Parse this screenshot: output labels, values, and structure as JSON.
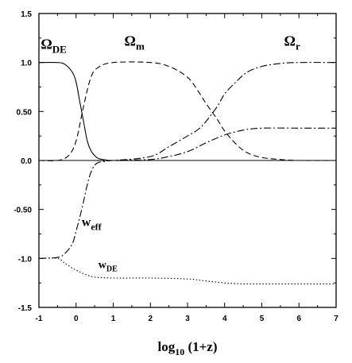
{
  "chart_data": {
    "type": "line",
    "xlabel": "log",
    "xlabel_sub": "10",
    "xlabel_tail": " (1+z)",
    "xlim": [
      -1,
      7
    ],
    "ylim": [
      -1.5,
      1.5
    ],
    "x_ticks": [
      -1,
      0,
      1,
      2,
      3,
      4,
      5,
      6,
      7
    ],
    "x_tick_labels": [
      "-1",
      "0",
      "1",
      "2",
      "3",
      "4",
      "5",
      "6",
      "7"
    ],
    "y_ticks": [
      -1.5,
      -1.0,
      -0.5,
      0.0,
      0.5,
      1.0,
      1.5
    ],
    "y_tick_labels": [
      "-1.5",
      "-1.0",
      "-0.50",
      "0.0",
      "0.50",
      "1.0",
      "1.5"
    ],
    "reference_line_y": 0,
    "grid": false,
    "series": [
      {
        "name": "Ω_DE",
        "label_main": "Ω",
        "label_sub": "DE",
        "style": "solid",
        "x": [
          -1,
          -0.5,
          -0.3,
          -0.1,
          0.0,
          0.1,
          0.2,
          0.3,
          0.4,
          0.5,
          0.6,
          0.8,
          1.0,
          2.0,
          7.0
        ],
        "y": [
          1.0,
          1.0,
          0.98,
          0.9,
          0.8,
          0.6,
          0.4,
          0.2,
          0.1,
          0.05,
          0.02,
          0.005,
          0.0,
          0.0,
          0.0
        ]
      },
      {
        "name": "Ω_m",
        "label_main": "Ω",
        "label_sub": "m",
        "style": "dashed",
        "x": [
          -1,
          -0.5,
          -0.2,
          0.0,
          0.2,
          0.4,
          0.6,
          1.0,
          2.0,
          2.5,
          3.0,
          3.3,
          3.5,
          3.8,
          4.0,
          4.3,
          4.6,
          5.0,
          5.5,
          6.0,
          7.0
        ],
        "y": [
          0.0,
          0.0,
          0.05,
          0.2,
          0.55,
          0.85,
          0.95,
          1.0,
          1.0,
          0.96,
          0.85,
          0.7,
          0.58,
          0.42,
          0.3,
          0.17,
          0.08,
          0.03,
          0.01,
          0.0,
          0.0
        ]
      },
      {
        "name": "Ω_r",
        "label_main": "Ω",
        "label_sub": "r",
        "style": "dashdot",
        "x": [
          -1,
          0.5,
          1.0,
          2.0,
          2.5,
          3.0,
          3.3,
          3.5,
          3.8,
          4.0,
          4.3,
          4.6,
          5.0,
          5.5,
          6.0,
          7.0
        ],
        "y": [
          0.0,
          0.0,
          0.0,
          0.04,
          0.14,
          0.25,
          0.32,
          0.4,
          0.55,
          0.68,
          0.8,
          0.9,
          0.96,
          0.99,
          1.0,
          1.0
        ]
      },
      {
        "name": "w_eff",
        "label_main": "w",
        "label_sub": "eff",
        "style": "dashdot",
        "x": [
          -1,
          -0.5,
          -0.3,
          -0.1,
          0.0,
          0.1,
          0.2,
          0.3,
          0.4,
          0.5,
          0.6,
          0.8,
          1.0,
          2.0,
          2.5,
          3.0,
          3.5,
          4.0,
          4.5,
          5.0,
          6.0,
          7.0
        ],
        "y": [
          -1.0,
          -0.99,
          -0.95,
          -0.85,
          -0.72,
          -0.58,
          -0.42,
          -0.25,
          -0.12,
          -0.05,
          -0.02,
          -0.01,
          0.0,
          0.01,
          0.04,
          0.09,
          0.18,
          0.26,
          0.31,
          0.33,
          0.33,
          0.33
        ]
      },
      {
        "name": "w_DE",
        "label_main": "w",
        "label_sub": "DE",
        "style": "dotted",
        "x": [
          -1,
          -0.5,
          -0.3,
          0.0,
          0.3,
          0.5,
          1.0,
          2.0,
          3.0,
          3.5,
          4.0,
          4.5,
          5.0,
          6.0,
          7.0
        ],
        "y": [
          -1.0,
          -1.0,
          -1.05,
          -1.12,
          -1.17,
          -1.19,
          -1.2,
          -1.2,
          -1.21,
          -1.23,
          -1.25,
          -1.26,
          -1.26,
          -1.26,
          -1.26
        ]
      }
    ],
    "annotations": [
      {
        "series": 0,
        "x": -0.95,
        "y": 1.14,
        "size": 18
      },
      {
        "series": 1,
        "x": 1.3,
        "y": 1.17,
        "size": 18
      },
      {
        "series": 2,
        "x": 5.6,
        "y": 1.17,
        "size": 18
      },
      {
        "series": 3,
        "x": 0.15,
        "y": -0.67,
        "size": 16
      },
      {
        "series": 4,
        "x": 0.6,
        "y": -1.1,
        "size": 14
      }
    ]
  }
}
